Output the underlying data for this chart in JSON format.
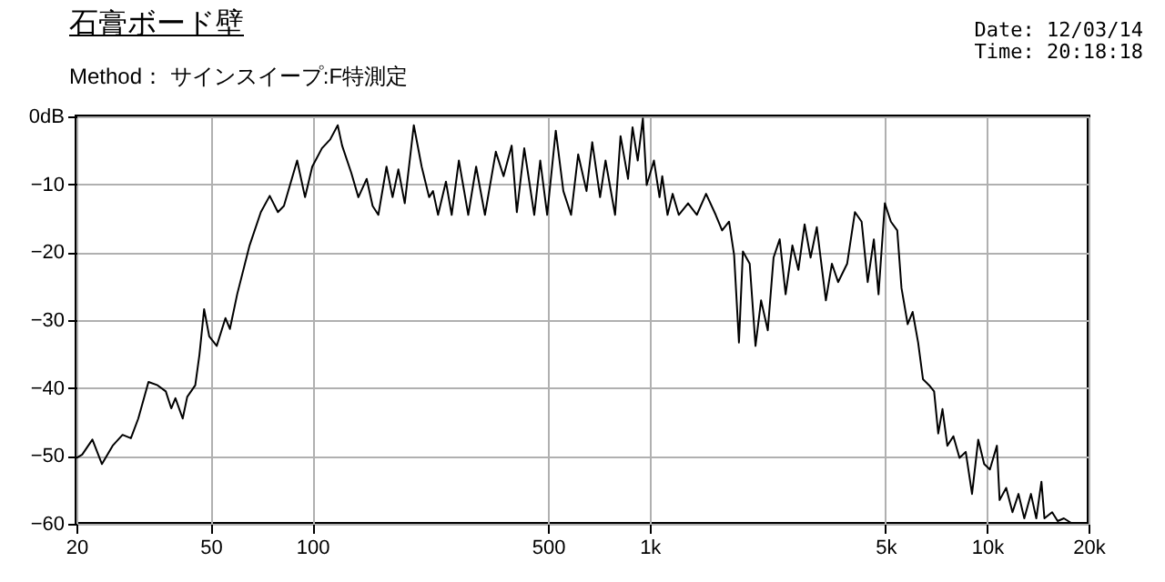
{
  "chart_data": {
    "type": "line",
    "title": "石膏ボード壁",
    "subtitle": "Method： サインスイープ:F特測定",
    "annotations": [
      "Date: 12/03/14",
      "Time: 20:18:18"
    ],
    "log": "x",
    "grid": true,
    "line_style": "solid",
    "marker": "none",
    "xlim": [
      20,
      20000
    ],
    "xticks": [
      20,
      50,
      100,
      500,
      {
        "value": 1000,
        "label": "1k"
      },
      {
        "value": 5000,
        "label": "5k"
      },
      {
        "value": 10000,
        "label": "10k"
      },
      {
        "value": 20000,
        "label": "20k"
      }
    ],
    "ylim": [
      -60,
      0
    ],
    "yticks": [
      -60,
      -50,
      -40,
      -30,
      -20,
      -10,
      {
        "value": 0,
        "label": "0dB"
      }
    ],
    "x": [
      20,
      20.8,
      22.3,
      23.8,
      25.6,
      27.4,
      29,
      30.5,
      32.7,
      34.8,
      36.8,
      38.2,
      39.3,
      41.3,
      42.6,
      45,
      46.3,
      47.8,
      49.5,
      52.1,
      55.3,
      57,
      59.9,
      65.2,
      70.4,
      74.8,
      79.1,
      82.4,
      90.2,
      95.2,
      100,
      106.8,
      113,
      119,
      122.6,
      130.5,
      137,
      145,
      151,
      157,
      166,
      173,
      180,
      188,
      200,
      211,
      222,
      228,
      236,
      249,
      259,
      272,
      290,
      306,
      325,
      350,
      369,
      390,
      404,
      425,
      455,
      474,
      497,
      527,
      555,
      585,
      614,
      650,
      676,
      713,
      740,
      790,
      820,
      863,
      890,
      922,
      955,
      980,
      1030,
      1070,
      1090,
      1130,
      1170,
      1220,
      1300,
      1380,
      1470,
      1570,
      1640,
      1720,
      1780,
      1840,
      1890,
      1980,
      2060,
      2140,
      2240,
      2330,
      2430,
      2530,
      2650,
      2760,
      2880,
      3000,
      3130,
      3330,
      3470,
      3620,
      3850,
      4060,
      4250,
      4430,
      4620,
      4770,
      4980,
      5190,
      5420,
      5580,
      5820,
      6020,
      6250,
      6460,
      6740,
      6970,
      7170,
      7380,
      7630,
      7950,
      8290,
      8650,
      9030,
      9420,
      9810,
      10200,
      10700,
      10900,
      11400,
      11900,
      12400,
      12900,
      13500,
      14000,
      14500,
      14800,
      15600,
      16200,
      16900,
      17800
    ],
    "series": [
      {
        "color": "#000000",
        "values": [
          -50.3,
          -49.8,
          -47.6,
          -51.2,
          -48.5,
          -46.9,
          -47.4,
          -44.5,
          -39.1,
          -39.6,
          -40.5,
          -43,
          -41.5,
          -44.5,
          -41.3,
          -39.6,
          -35.1,
          -28.4,
          -32.4,
          -33.8,
          -29.7,
          -31.3,
          -26.2,
          -19,
          -14.1,
          -11.7,
          -14.1,
          -13.2,
          -6.5,
          -11.9,
          -7.4,
          -4.7,
          -3.4,
          -1.3,
          -4.3,
          -8.3,
          -11.9,
          -9.2,
          -13.2,
          -14.5,
          -7.4,
          -11.9,
          -7.8,
          -12.8,
          -1.3,
          -7.4,
          -11.9,
          -11,
          -14.5,
          -9.6,
          -14.5,
          -6.5,
          -14.5,
          -7.4,
          -14.5,
          -5.2,
          -8.8,
          -4.3,
          -14.1,
          -4.7,
          -14.5,
          -6.5,
          -14.5,
          -2.1,
          -11,
          -14.5,
          -5.6,
          -11,
          -3.8,
          -11.9,
          -6.5,
          -14.5,
          -2.9,
          -9.2,
          -1.6,
          -6.5,
          -0.3,
          -10.1,
          -6.5,
          -11.9,
          -8.8,
          -14.5,
          -11.4,
          -14.5,
          -12.8,
          -14.5,
          -11.4,
          -14.5,
          -16.8,
          -15.5,
          -20.4,
          -33.3,
          -19.9,
          -21.7,
          -33.8,
          -27.1,
          -31.5,
          -20.8,
          -18.1,
          -26.2,
          -19,
          -22.6,
          -15.9,
          -20.8,
          -16.3,
          -27.1,
          -21.7,
          -24.4,
          -21.7,
          -14.1,
          -15.5,
          -24.4,
          -18.1,
          -26.2,
          -12.8,
          -15.5,
          -16.8,
          -25.3,
          -30.6,
          -28.8,
          -33.3,
          -38.7,
          -39.6,
          -40.5,
          -46.7,
          -43.1,
          -48.5,
          -47.1,
          -50.3,
          -49.4,
          -55.6,
          -47.6,
          -51.2,
          -52,
          -48.5,
          -56.5,
          -54.7,
          -58.3,
          -55.6,
          -59.2,
          -55.6,
          -59.2,
          -53.8,
          -59.2,
          -58.3,
          -59.6,
          -59.2,
          -59.9
        ]
      }
    ]
  }
}
